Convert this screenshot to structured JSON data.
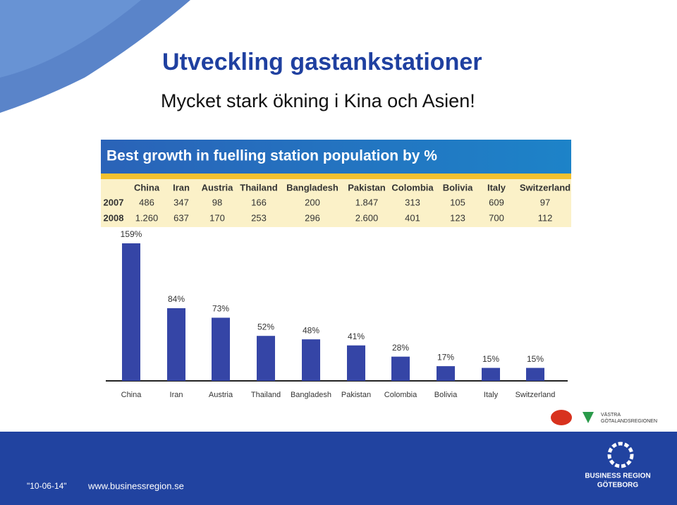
{
  "header": {
    "title": "Utveckling gastankstationer",
    "subtitle": "Mycket stark ökning i Kina och Asien!"
  },
  "chart_data": {
    "type": "bar",
    "title": "Best growth in fuelling station population by %",
    "categories": [
      "China",
      "Iran",
      "Austria",
      "Thailand",
      "Bangladesh",
      "Pakistan",
      "Colombia",
      "Bolivia",
      "Italy",
      "Switzerland"
    ],
    "values": [
      159,
      84,
      73,
      52,
      48,
      41,
      28,
      17,
      15,
      15
    ],
    "value_labels": [
      "159%",
      "84%",
      "73%",
      "52%",
      "48%",
      "41%",
      "28%",
      "17%",
      "15%",
      "15%"
    ],
    "color": "#3545a6",
    "table": {
      "rows": [
        {
          "label": "2007",
          "cells": [
            "486",
            "347",
            "98",
            "166",
            "200",
            "1.847",
            "313",
            "105",
            "609",
            "97"
          ]
        },
        {
          "label": "2008",
          "cells": [
            "1.260",
            "637",
            "170",
            "253",
            "296",
            "2.600",
            "401",
            "123",
            "700",
            "112"
          ]
        }
      ]
    }
  },
  "footer": {
    "date": "\"10-06-14\"",
    "url": "www.businessregion.se",
    "logo_line1": "BUSINESS REGION",
    "logo_line2": "GÖTEBORG",
    "partner_line1": "VÄSTRA",
    "partner_line2": "GÖTALANDSREGIONEN"
  }
}
